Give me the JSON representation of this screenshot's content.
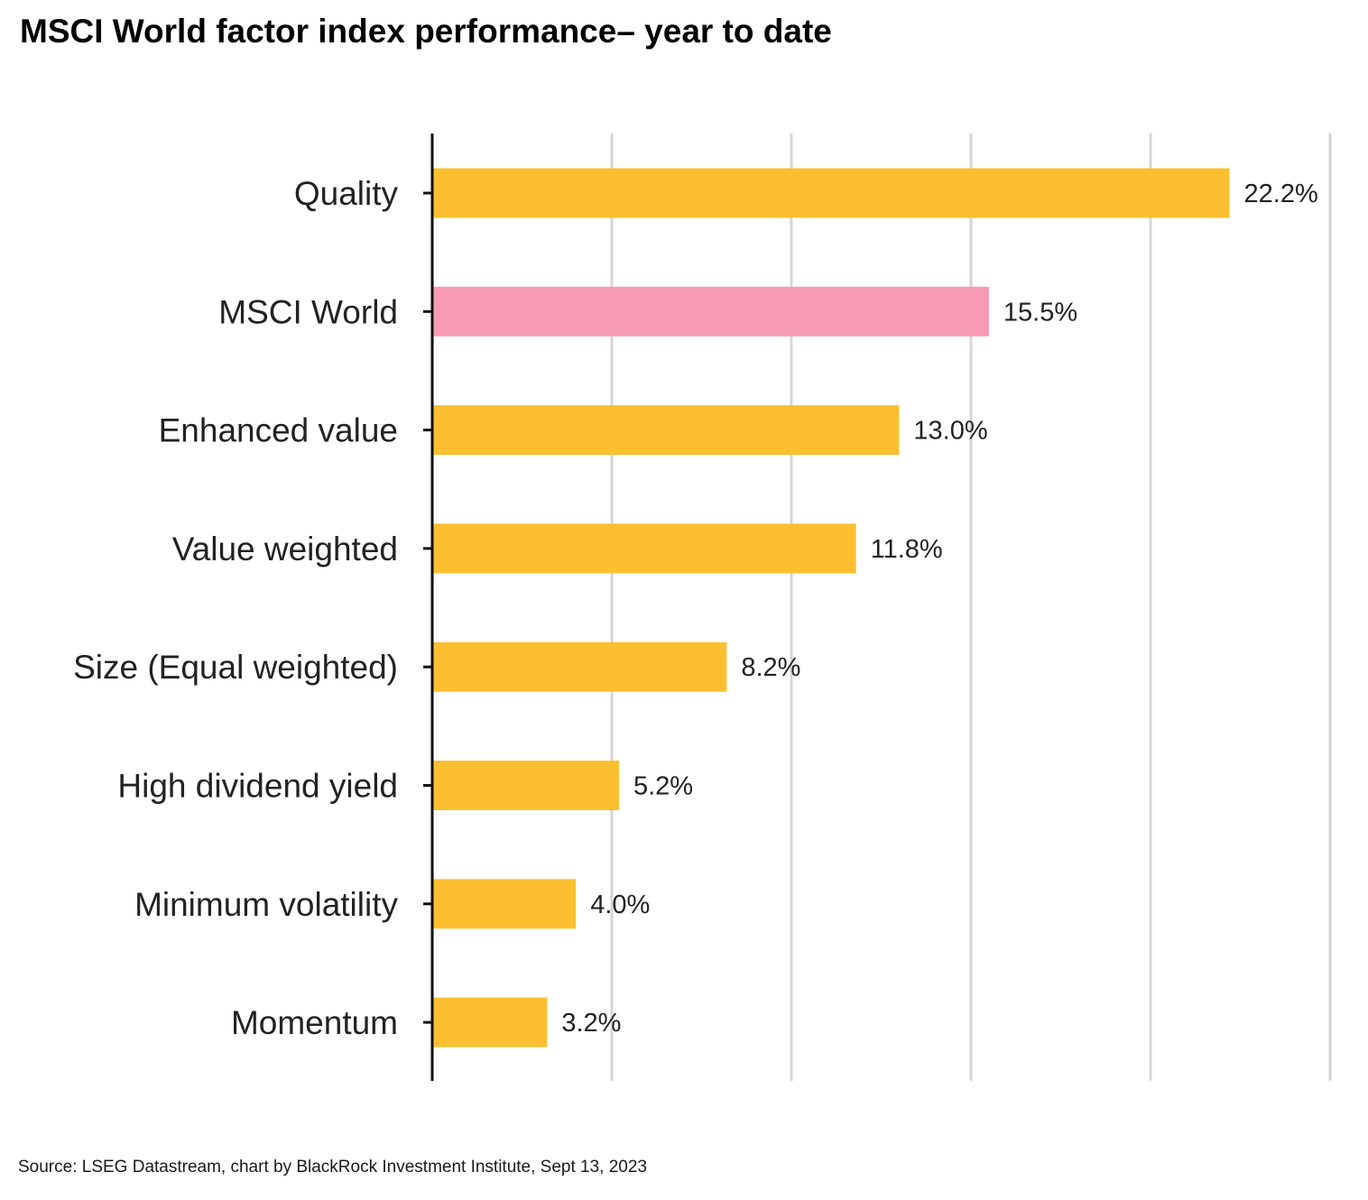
{
  "title": "MSCI World factor index performance– year to date",
  "source": "Source: LSEG Datastream, chart by BlackRock Investment Institute, Sept 13, 2023",
  "colors": {
    "bar": "#FBBF2F",
    "highlight": "#F79BB5",
    "grid": "#d6d6d6",
    "axis": "#111111",
    "text": "#222222"
  },
  "chart_data": {
    "type": "bar",
    "orientation": "horizontal",
    "title": "MSCI World factor index performance– year to date",
    "xlabel": "",
    "ylabel": "",
    "unit": "%",
    "xlim": [
      0,
      25
    ],
    "grid_values": [
      5,
      10,
      15,
      20,
      25
    ],
    "grid": true,
    "categories": [
      "Quality",
      "MSCI World",
      "Enhanced value",
      "Value weighted",
      "Size (Equal weighted)",
      "High dividend yield",
      "Minimum volatility",
      "Momentum"
    ],
    "values": [
      22.2,
      15.5,
      13.0,
      11.8,
      8.2,
      5.2,
      4.0,
      3.2
    ],
    "labels": [
      "22.2%",
      "15.5%",
      "13.0%",
      "11.8%",
      "8.2%",
      "5.2%",
      "4.0%",
      "3.2%"
    ],
    "highlight": [
      "MSCI World"
    ]
  }
}
